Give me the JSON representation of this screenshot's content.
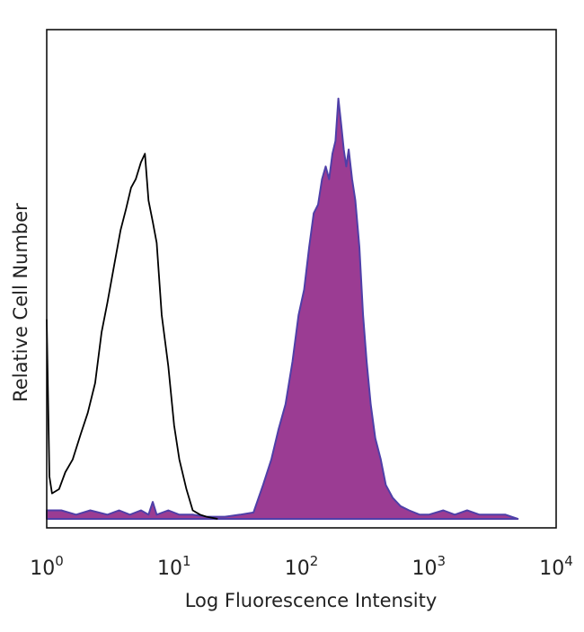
{
  "chart_data": {
    "type": "area",
    "xscale": "log",
    "xlim": [
      1,
      10000
    ],
    "ylim": [
      0,
      100
    ],
    "xlabel": "Log Fluorescence Intensity",
    "ylabel": "Relative Cell Number",
    "x_ticks": [
      {
        "value": 1,
        "base": "10",
        "exp": "0"
      },
      {
        "value": 10,
        "base": "10",
        "exp": "1"
      },
      {
        "value": 100,
        "base": "10",
        "exp": "2"
      },
      {
        "value": 1000,
        "base": "10",
        "exp": "3"
      },
      {
        "value": 10000,
        "base": "10",
        "exp": "4"
      }
    ],
    "grid": false,
    "series": [
      {
        "style": "outline",
        "color": "#000000",
        "points": [
          [
            1.0,
            47
          ],
          [
            1.05,
            10
          ],
          [
            1.1,
            6
          ],
          [
            1.25,
            7
          ],
          [
            1.4,
            11
          ],
          [
            1.6,
            14
          ],
          [
            1.85,
            20
          ],
          [
            2.1,
            25
          ],
          [
            2.4,
            32
          ],
          [
            2.7,
            44
          ],
          [
            3.0,
            51
          ],
          [
            3.4,
            60
          ],
          [
            3.8,
            68
          ],
          [
            4.2,
            73
          ],
          [
            4.6,
            78
          ],
          [
            5.0,
            80
          ],
          [
            5.5,
            84
          ],
          [
            5.9,
            86
          ],
          [
            6.3,
            75
          ],
          [
            6.8,
            70
          ],
          [
            7.3,
            65
          ],
          [
            8.0,
            48
          ],
          [
            9.0,
            36
          ],
          [
            10.0,
            22
          ],
          [
            11.0,
            14
          ],
          [
            12.5,
            7
          ],
          [
            14.0,
            2
          ],
          [
            16.0,
            1
          ],
          [
            18.0,
            0.5
          ],
          [
            22.0,
            0
          ]
        ]
      },
      {
        "style": "filled",
        "fill": "#9b3c93",
        "stroke": "#4f3fa8",
        "points": [
          [
            1.0,
            2
          ],
          [
            1.3,
            2
          ],
          [
            1.7,
            1
          ],
          [
            2.2,
            2
          ],
          [
            3.0,
            1
          ],
          [
            3.7,
            2
          ],
          [
            4.5,
            1
          ],
          [
            5.5,
            2
          ],
          [
            6.3,
            1
          ],
          [
            6.8,
            4
          ],
          [
            7.3,
            1
          ],
          [
            9.0,
            2
          ],
          [
            11.0,
            1
          ],
          [
            14.0,
            1
          ],
          [
            18.0,
            0.5
          ],
          [
            25.0,
            0.5
          ],
          [
            33.0,
            1
          ],
          [
            42.0,
            1.5
          ],
          [
            50.0,
            8
          ],
          [
            58.0,
            14
          ],
          [
            66.0,
            21
          ],
          [
            75.0,
            27
          ],
          [
            85.0,
            37
          ],
          [
            95.0,
            48
          ],
          [
            105.0,
            54
          ],
          [
            115.0,
            64
          ],
          [
            125.0,
            72
          ],
          [
            135.0,
            74
          ],
          [
            145.0,
            80
          ],
          [
            155.0,
            83
          ],
          [
            165.0,
            80
          ],
          [
            175.0,
            86
          ],
          [
            185.0,
            89
          ],
          [
            195.0,
            99
          ],
          [
            205.0,
            93
          ],
          [
            215.0,
            87
          ],
          [
            225.0,
            83
          ],
          [
            235.0,
            87
          ],
          [
            250.0,
            80
          ],
          [
            265.0,
            75
          ],
          [
            285.0,
            64
          ],
          [
            305.0,
            48
          ],
          [
            325.0,
            37
          ],
          [
            350.0,
            27
          ],
          [
            380.0,
            19
          ],
          [
            420.0,
            14
          ],
          [
            460.0,
            8
          ],
          [
            520.0,
            5
          ],
          [
            600.0,
            3
          ],
          [
            700.0,
            2
          ],
          [
            850.0,
            1
          ],
          [
            1000.0,
            1
          ],
          [
            1300.0,
            2
          ],
          [
            1600.0,
            1
          ],
          [
            2000.0,
            2
          ],
          [
            2500.0,
            1
          ],
          [
            3200.0,
            1
          ],
          [
            4000.0,
            1
          ],
          [
            5000.0,
            0
          ]
        ]
      }
    ]
  }
}
